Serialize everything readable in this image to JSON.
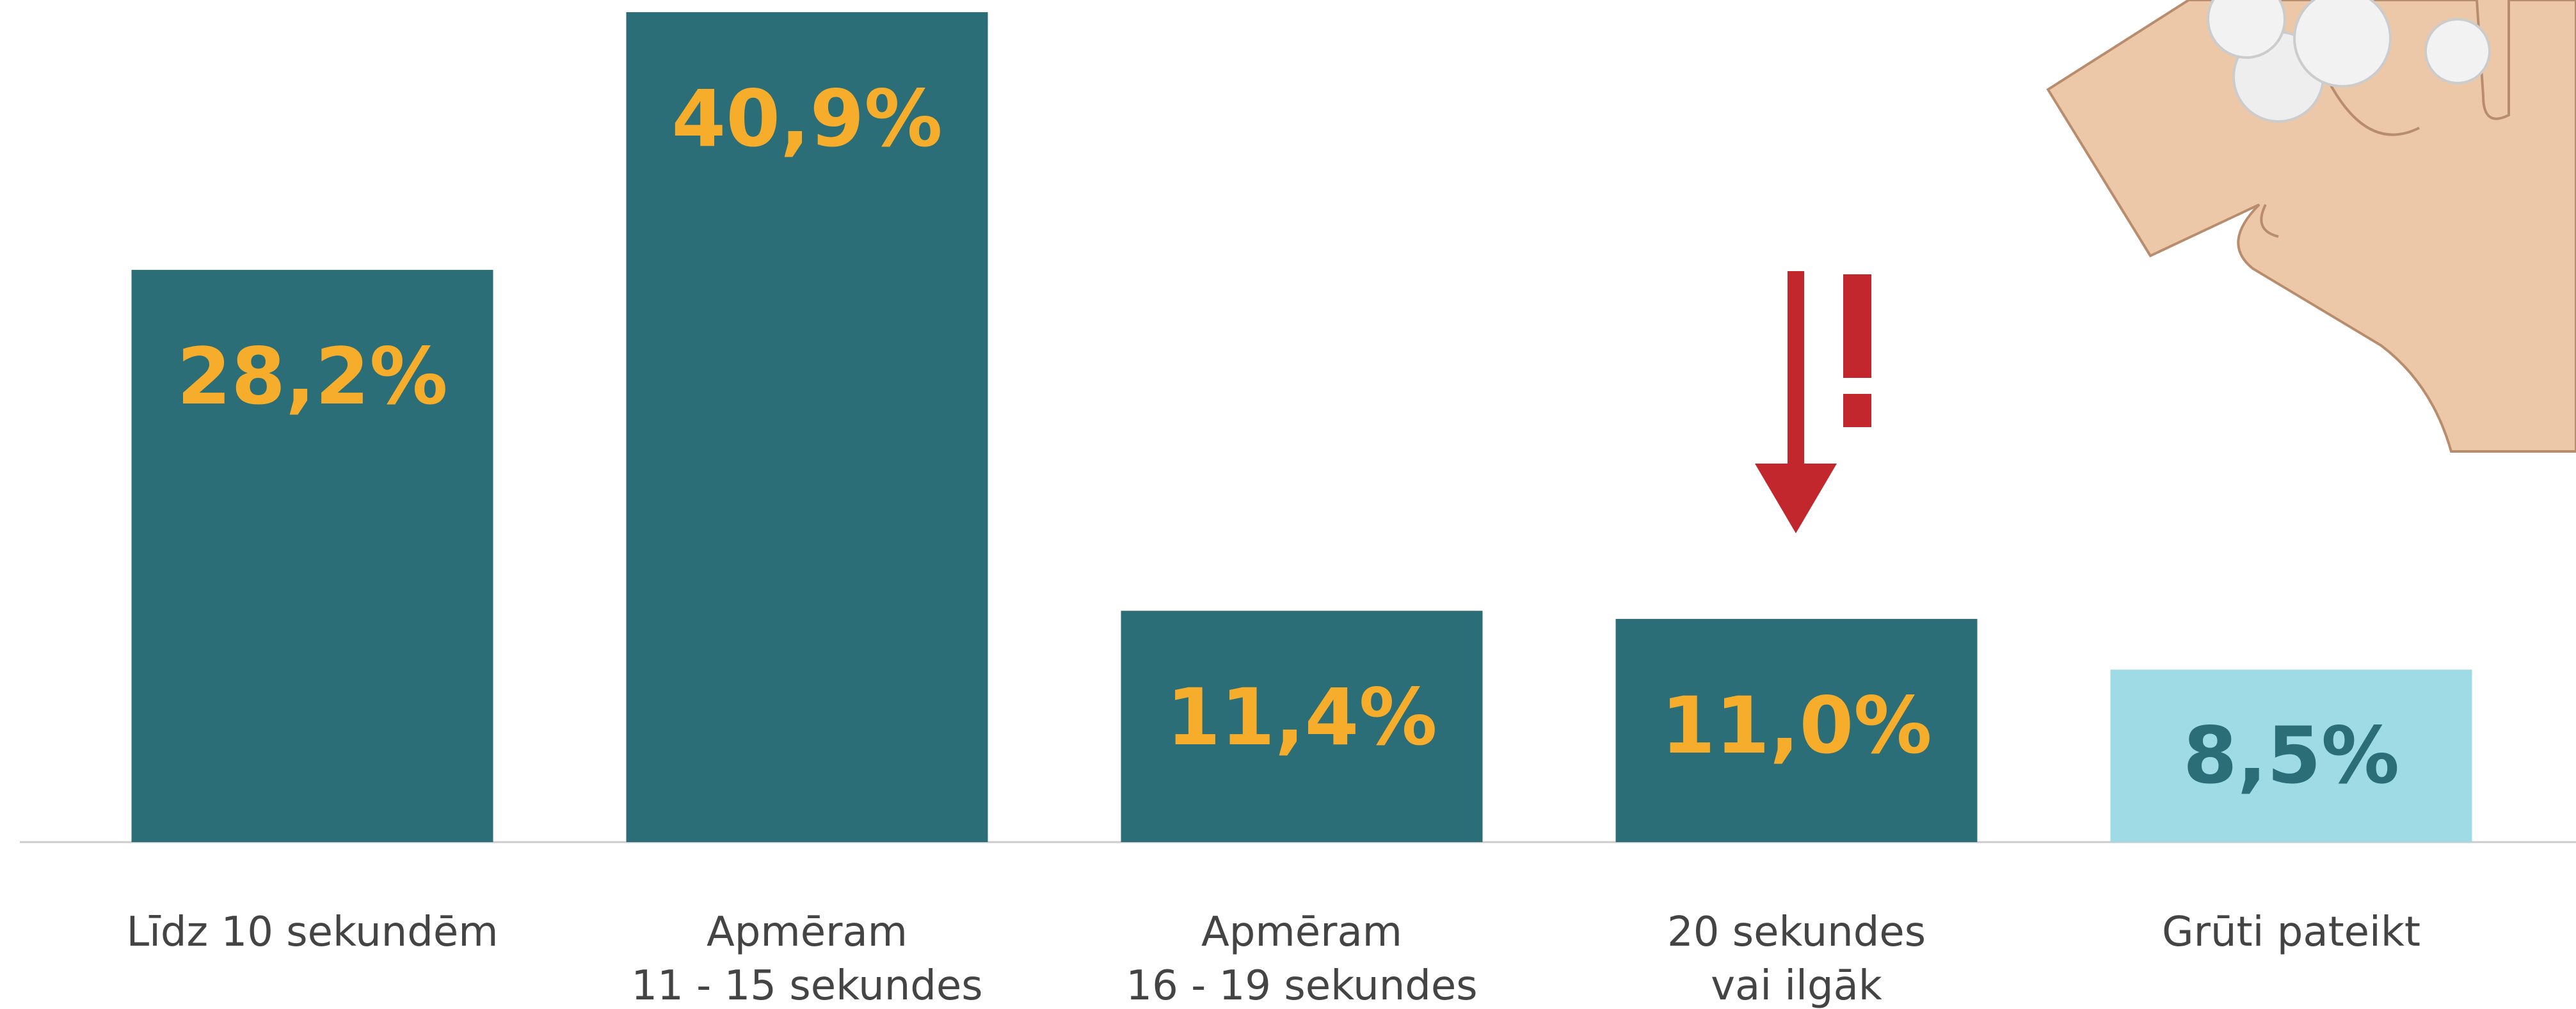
{
  "chart_data": {
    "type": "bar",
    "categories": [
      "Līdz 10 sekundēm",
      "Apmēram\n11 - 15 sekundes",
      "Apmēram\n16 - 19 sekundes",
      "20 sekundes\nvai ilgāk",
      "Grūti pateikt"
    ],
    "values": [
      28.2,
      40.9,
      11.4,
      11.0,
      8.5
    ],
    "value_labels": [
      "28,2%",
      "40,9%",
      "11,4%",
      "11,0%",
      "8,5%"
    ],
    "colors": [
      "#2b6e78",
      "#2b6e78",
      "#2b6e78",
      "#2b6e78",
      "#9fdbe4"
    ],
    "label_colors": [
      "#f6ad2b",
      "#f6ad2b",
      "#f6ad2b",
      "#f6ad2b",
      "#2b6e78"
    ],
    "ylim": [
      0,
      41.5
    ]
  }
}
